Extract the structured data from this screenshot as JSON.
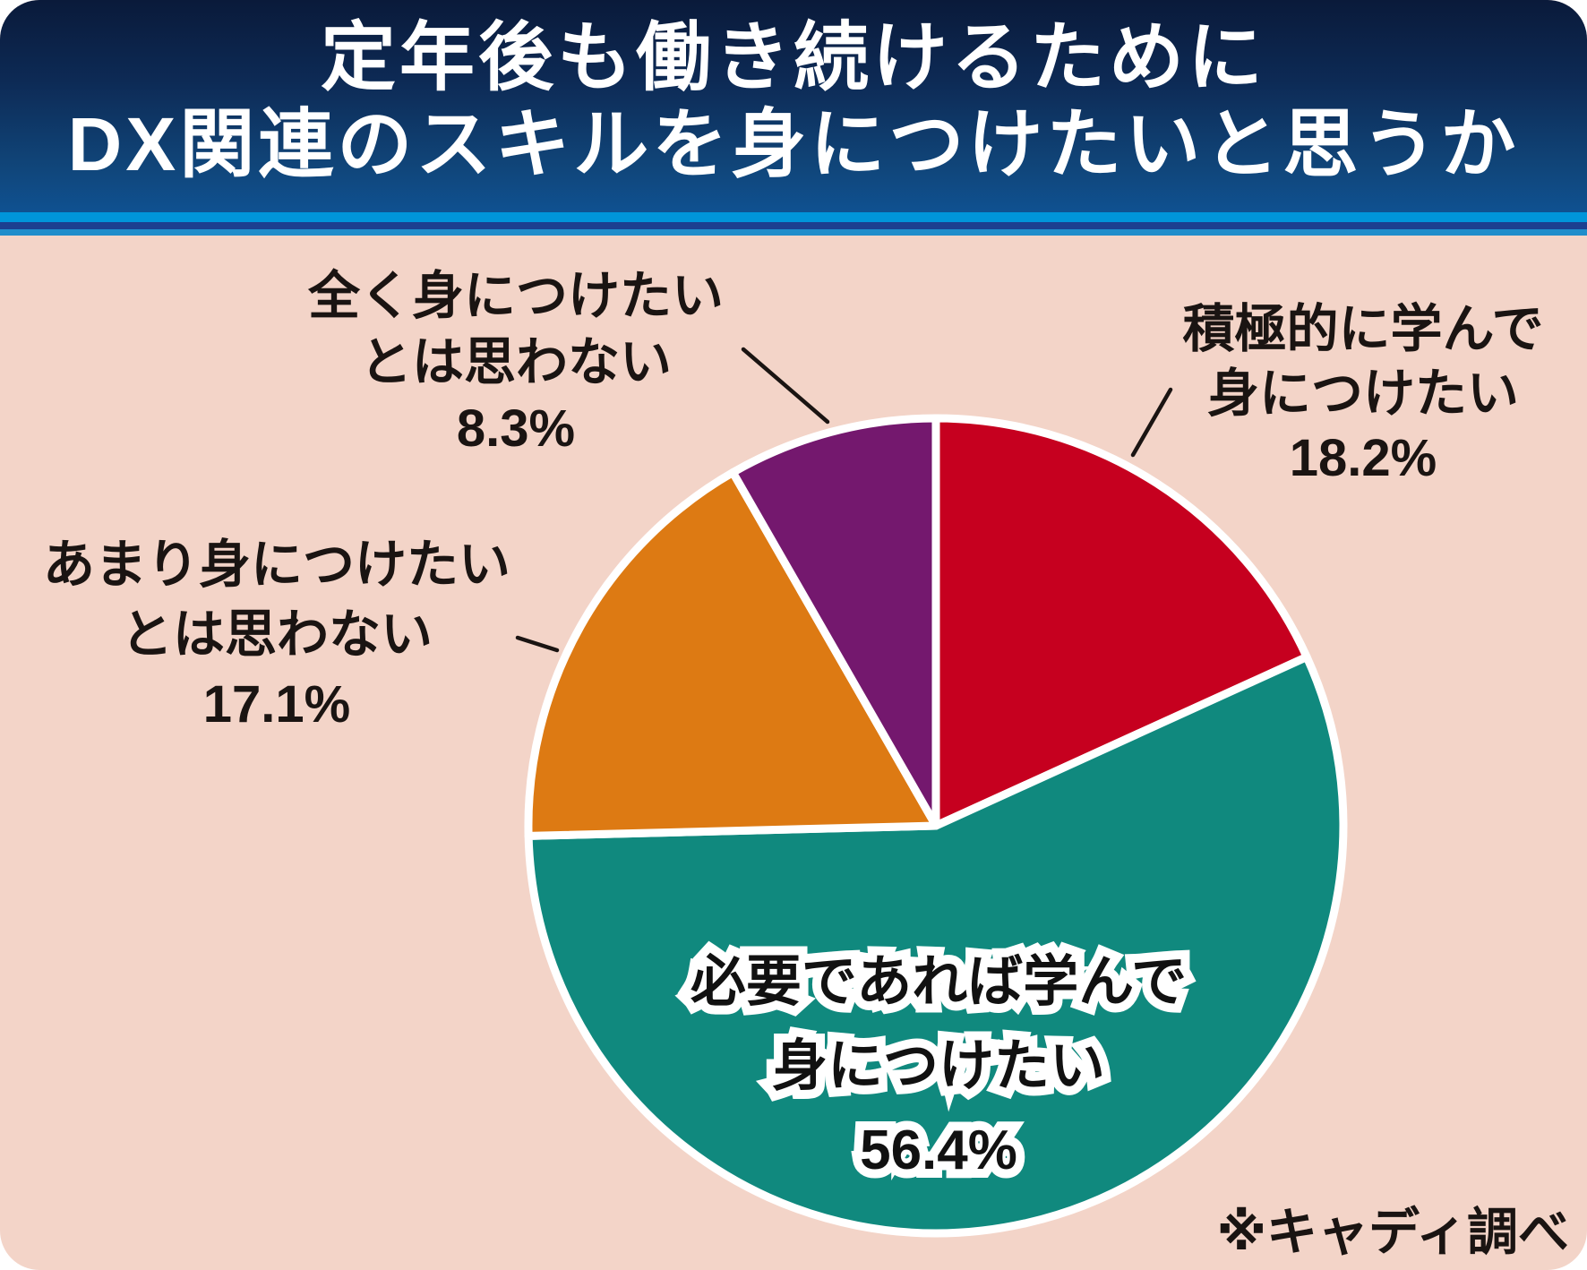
{
  "page": {
    "background_color": "#f3d4c8",
    "outer_background_color": "#ffffff"
  },
  "header": {
    "title_line1": "定年後も働き続けるために",
    "title_line2": "DX関連のスキルを身につけたいと思うか",
    "text_color": "#ffffff",
    "gradient_top_color": "#0a1a3a",
    "gradient_bottom_color": "#0f5191",
    "stripe_colors": [
      "#0095da",
      "#1c3f90",
      "#1f8dcb"
    ]
  },
  "chart_data": {
    "type": "pie",
    "title": "定年後も働き続けるためにDX関連のスキルを身につけたいと思うか",
    "unit": "%",
    "start_angle_deg": 0,
    "direction": "clockwise",
    "slice_border_color": "#ffffff",
    "segments": [
      {
        "name": "積極的に学んで身につけたい",
        "value_pct": 18.2,
        "color": "#c6001f",
        "label_lines": [
          "積極的に学んで",
          "身につけたい",
          "18.2%"
        ],
        "label_placement": "outside-upper-right"
      },
      {
        "name": "必要であれば学んで身につけたい",
        "value_pct": 56.4,
        "color": "#10897e",
        "label_lines": [
          "必要であれば学んで",
          "身につけたい",
          "56.4%"
        ],
        "label_placement": "inside-bottom"
      },
      {
        "name": "あまり身につけたいとは思わない",
        "value_pct": 17.1,
        "color": "#dd7a13",
        "label_lines": [
          "あまり身につけたい",
          "とは思わない",
          "17.1%"
        ],
        "label_placement": "outside-left"
      },
      {
        "name": "全く身につけたいとは思わない",
        "value_pct": 8.3,
        "color": "#74186e",
        "label_lines": [
          "全く身につけたい",
          "とは思わない",
          "8.3%"
        ],
        "label_placement": "outside-upper-left"
      }
    ],
    "source_note": "※キャディ調べ"
  }
}
